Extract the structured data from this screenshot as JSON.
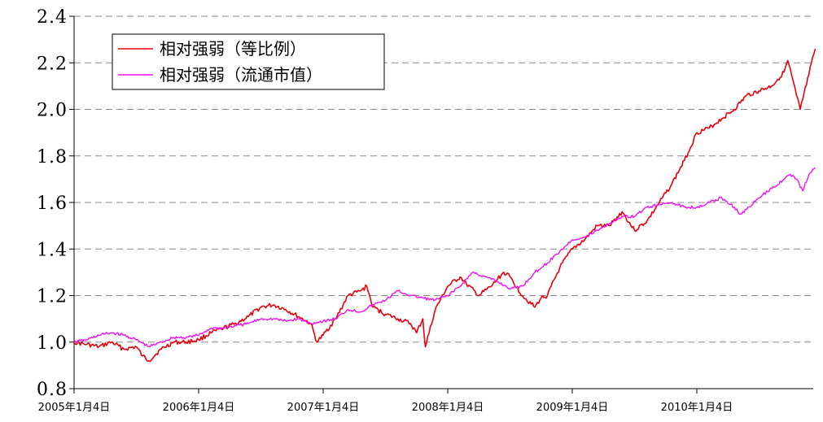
{
  "chart_data": {
    "type": "line",
    "title": "",
    "xlabel": "",
    "ylabel": "",
    "ylim": [
      0.8,
      2.4
    ],
    "yticks": [
      "0.8",
      "1.0",
      "1.2",
      "1.4",
      "1.6",
      "1.8",
      "2.0",
      "2.2",
      "2.4"
    ],
    "xticks": [
      "2005年1月4日",
      "2006年1月4日",
      "2007年1月4日",
      "2008年1月4日",
      "2009年1月4日",
      "2010年1月4日"
    ],
    "grid": "horizontal dashed",
    "legend_position": "top-left",
    "series": [
      {
        "name": "相对强弱（等比例）",
        "color": "#e8000b",
        "points": [
          [
            0.0,
            1.0
          ],
          [
            0.1,
            0.99
          ],
          [
            0.2,
            0.98
          ],
          [
            0.3,
            1.0
          ],
          [
            0.4,
            0.97
          ],
          [
            0.5,
            0.98
          ],
          [
            0.55,
            0.94
          ],
          [
            0.6,
            0.92
          ],
          [
            0.7,
            0.97
          ],
          [
            0.8,
            1.0
          ],
          [
            0.9,
            1.0
          ],
          [
            1.0,
            1.01
          ],
          [
            1.1,
            1.04
          ],
          [
            1.2,
            1.06
          ],
          [
            1.3,
            1.08
          ],
          [
            1.4,
            1.11
          ],
          [
            1.5,
            1.15
          ],
          [
            1.6,
            1.16
          ],
          [
            1.7,
            1.14
          ],
          [
            1.8,
            1.11
          ],
          [
            1.9,
            1.08
          ],
          [
            1.95,
            1.0
          ],
          [
            2.0,
            1.03
          ],
          [
            2.1,
            1.1
          ],
          [
            2.2,
            1.2
          ],
          [
            2.3,
            1.22
          ],
          [
            2.35,
            1.24
          ],
          [
            2.4,
            1.15
          ],
          [
            2.5,
            1.12
          ],
          [
            2.6,
            1.1
          ],
          [
            2.7,
            1.08
          ],
          [
            2.75,
            1.04
          ],
          [
            2.8,
            1.1
          ],
          [
            2.82,
            0.98
          ],
          [
            2.9,
            1.14
          ],
          [
            3.0,
            1.24
          ],
          [
            3.1,
            1.28
          ],
          [
            3.15,
            1.25
          ],
          [
            3.25,
            1.2
          ],
          [
            3.35,
            1.24
          ],
          [
            3.45,
            1.3
          ],
          [
            3.5,
            1.28
          ],
          [
            3.6,
            1.2
          ],
          [
            3.7,
            1.15
          ],
          [
            3.75,
            1.19
          ],
          [
            3.8,
            1.2
          ],
          [
            3.9,
            1.32
          ],
          [
            4.0,
            1.4
          ],
          [
            4.1,
            1.44
          ],
          [
            4.2,
            1.5
          ],
          [
            4.3,
            1.5
          ],
          [
            4.4,
            1.56
          ],
          [
            4.5,
            1.48
          ],
          [
            4.6,
            1.52
          ],
          [
            4.7,
            1.6
          ],
          [
            4.8,
            1.68
          ],
          [
            4.9,
            1.78
          ],
          [
            5.0,
            1.9
          ],
          [
            5.1,
            1.92
          ],
          [
            5.2,
            1.96
          ],
          [
            5.3,
            2.0
          ],
          [
            5.4,
            2.06
          ],
          [
            5.5,
            2.08
          ],
          [
            5.6,
            2.1
          ],
          [
            5.7,
            2.16
          ],
          [
            5.73,
            2.21
          ],
          [
            5.8,
            2.06
          ],
          [
            5.83,
            2.0
          ],
          [
            5.9,
            2.15
          ],
          [
            5.95,
            2.26
          ]
        ]
      },
      {
        "name": "相对强弱（流通市值）",
        "color": "#ee10ee",
        "points": [
          [
            0.0,
            1.0
          ],
          [
            0.1,
            1.01
          ],
          [
            0.2,
            1.03
          ],
          [
            0.3,
            1.04
          ],
          [
            0.4,
            1.03
          ],
          [
            0.5,
            1.01
          ],
          [
            0.6,
            0.98
          ],
          [
            0.7,
            1.0
          ],
          [
            0.8,
            1.02
          ],
          [
            0.9,
            1.02
          ],
          [
            1.0,
            1.03
          ],
          [
            1.1,
            1.06
          ],
          [
            1.2,
            1.06
          ],
          [
            1.3,
            1.07
          ],
          [
            1.4,
            1.08
          ],
          [
            1.5,
            1.1
          ],
          [
            1.6,
            1.1
          ],
          [
            1.7,
            1.09
          ],
          [
            1.8,
            1.1
          ],
          [
            1.9,
            1.08
          ],
          [
            2.0,
            1.09
          ],
          [
            2.1,
            1.1
          ],
          [
            2.2,
            1.14
          ],
          [
            2.3,
            1.13
          ],
          [
            2.4,
            1.16
          ],
          [
            2.5,
            1.18
          ],
          [
            2.6,
            1.22
          ],
          [
            2.7,
            1.2
          ],
          [
            2.8,
            1.19
          ],
          [
            2.9,
            1.18
          ],
          [
            3.0,
            1.2
          ],
          [
            3.1,
            1.24
          ],
          [
            3.2,
            1.3
          ],
          [
            3.3,
            1.28
          ],
          [
            3.4,
            1.26
          ],
          [
            3.5,
            1.23
          ],
          [
            3.6,
            1.24
          ],
          [
            3.7,
            1.3
          ],
          [
            3.8,
            1.34
          ],
          [
            3.9,
            1.39
          ],
          [
            4.0,
            1.44
          ],
          [
            4.1,
            1.45
          ],
          [
            4.2,
            1.48
          ],
          [
            4.3,
            1.51
          ],
          [
            4.4,
            1.54
          ],
          [
            4.5,
            1.54
          ],
          [
            4.6,
            1.58
          ],
          [
            4.7,
            1.59
          ],
          [
            4.8,
            1.6
          ],
          [
            4.9,
            1.58
          ],
          [
            5.0,
            1.58
          ],
          [
            5.1,
            1.6
          ],
          [
            5.2,
            1.62
          ],
          [
            5.3,
            1.58
          ],
          [
            5.35,
            1.55
          ],
          [
            5.4,
            1.57
          ],
          [
            5.5,
            1.62
          ],
          [
            5.6,
            1.66
          ],
          [
            5.7,
            1.7
          ],
          [
            5.75,
            1.72
          ],
          [
            5.8,
            1.7
          ],
          [
            5.85,
            1.65
          ],
          [
            5.9,
            1.72
          ],
          [
            5.95,
            1.75
          ]
        ]
      }
    ]
  }
}
